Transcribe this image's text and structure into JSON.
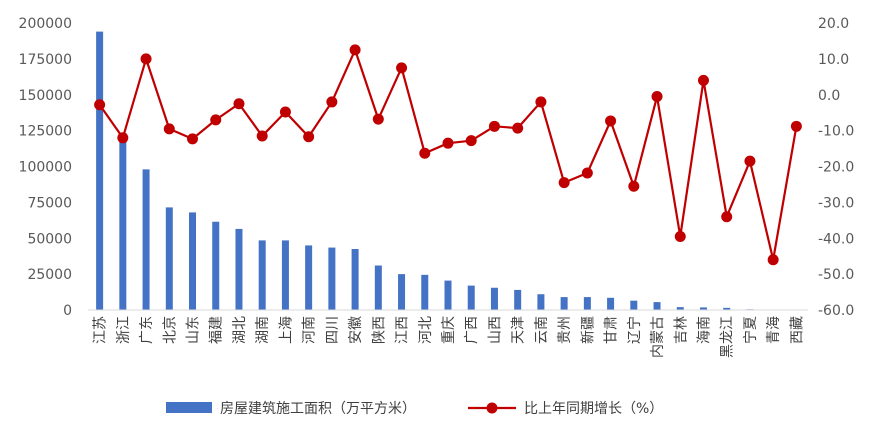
{
  "chart_data": {
    "type": "bar",
    "categories": [
      "江苏",
      "浙江",
      "广东",
      "北京",
      "山东",
      "福建",
      "湖北",
      "湖南",
      "上海",
      "河南",
      "四川",
      "安徽",
      "陕西",
      "江西",
      "河北",
      "重庆",
      "广西",
      "山西",
      "天津",
      "云南",
      "贵州",
      "新疆",
      "甘肃",
      "辽宁",
      "内蒙古",
      "吉林",
      "海南",
      "黑龙江",
      "宁夏",
      "青海",
      "西藏"
    ],
    "series": [
      {
        "name": "房屋建筑施工面积（万平方米）",
        "type": "bar",
        "axis": "left",
        "color": "#4472C4",
        "values": [
          194000,
          121000,
          98000,
          71500,
          68000,
          61500,
          56500,
          48500,
          48500,
          45000,
          43500,
          42500,
          31000,
          25000,
          24500,
          20500,
          17000,
          15500,
          14000,
          11000,
          9000,
          9000,
          8500,
          6500,
          5500,
          2000,
          1800,
          1500,
          500,
          300,
          200
        ]
      },
      {
        "name": "比上年同期增长（%）",
        "type": "line",
        "axis": "right",
        "color": "#C00000",
        "values": [
          -2.8,
          -12.0,
          10.0,
          -9.5,
          -12.3,
          -7.0,
          -2.5,
          -11.5,
          -4.8,
          -11.7,
          -2.0,
          12.5,
          -6.8,
          7.5,
          -16.3,
          -13.5,
          -12.8,
          -8.8,
          -9.3,
          -2.0,
          -24.5,
          -21.8,
          -7.3,
          -25.5,
          -0.5,
          -39.5,
          4.0,
          -34.0,
          -18.5,
          -46.0,
          -8.8
        ]
      }
    ],
    "y_left": {
      "lim": [
        0,
        200000
      ],
      "ticks": [
        "0",
        "25000",
        "50000",
        "75000",
        "100000",
        "125000",
        "150000",
        "175000",
        "200000"
      ]
    },
    "y_right": {
      "lim": [
        -60,
        20
      ],
      "ticks": [
        "-60.0",
        "-50.0",
        "-40.0",
        "-30.0",
        "-20.0",
        "-10.0",
        "0.0",
        "10.0",
        "20.0"
      ]
    },
    "grid": false,
    "legend": "bottom"
  }
}
